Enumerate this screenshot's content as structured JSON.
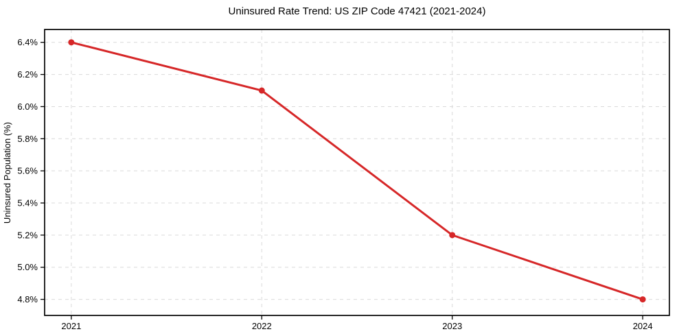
{
  "figure": {
    "title": "Uninsured Rate Trend: US ZIP Code 47421 (2021-2024)",
    "ylabel": "Uninsured Population (%)",
    "xlabel": ""
  },
  "chart_data": {
    "type": "line",
    "title": "Uninsured Rate Trend: US ZIP Code 47421 (2021-2024)",
    "xlabel": "",
    "ylabel": "Uninsured Population (%)",
    "x": [
      2021,
      2022,
      2023,
      2024
    ],
    "series": [
      {
        "name": "Uninsured Rate",
        "values": [
          6.4,
          6.1,
          5.2,
          4.8
        ],
        "color": "#d62728",
        "marker": "circle",
        "line_width": 3,
        "marker_radius": 4.5
      }
    ],
    "xticks": [
      2021,
      2022,
      2023,
      2024
    ],
    "xtick_labels": [
      "2021",
      "2022",
      "2023",
      "2024"
    ],
    "yticks": [
      4.8,
      5.0,
      5.2,
      5.4,
      5.6,
      5.8,
      6.0,
      6.2,
      6.4
    ],
    "ytick_labels": [
      "4.8%",
      "5.0%",
      "5.2%",
      "5.4%",
      "5.6%",
      "5.8%",
      "6.0%",
      "6.2%",
      "6.4%"
    ],
    "xlim": [
      2020.86,
      2024.14
    ],
    "ylim": [
      4.7,
      6.48
    ],
    "grid": true,
    "grid_style": "dashed",
    "legend": "none",
    "colors": {
      "line": "#d62728",
      "grid": "#d9d9d9",
      "spine": "#000000",
      "text": "#000000",
      "background": "#ffffff"
    }
  }
}
